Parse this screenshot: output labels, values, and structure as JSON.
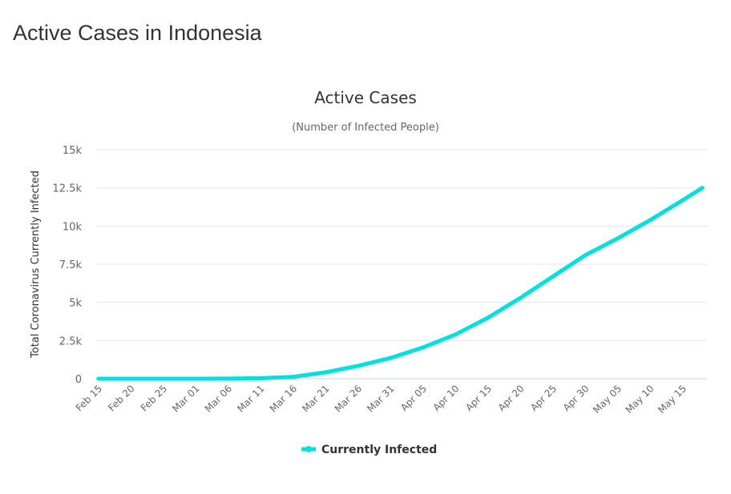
{
  "page_title": "Active Cases in Indonesia",
  "chart_data": {
    "type": "line",
    "title": "Active Cases",
    "subtitle": "(Number of Infected People)",
    "ylabel": "Total Coronavirus Currently Infected",
    "xlabel": "",
    "ylim": [
      0,
      15000
    ],
    "y_ticks": [
      0,
      2500,
      5000,
      7500,
      10000,
      12500,
      15000
    ],
    "y_tick_labels": [
      "0",
      "2.5k",
      "5k",
      "7.5k",
      "10k",
      "12.5k",
      "15k"
    ],
    "x_tick_labels": [
      "Feb 15",
      "Feb 20",
      "Feb 25",
      "Mar 01",
      "Mar 06",
      "Mar 11",
      "Mar 16",
      "Mar 21",
      "Mar 26",
      "Mar 31",
      "Apr 05",
      "Apr 10",
      "Apr 15",
      "Apr 20",
      "Apr 25",
      "Apr 30",
      "May 05",
      "May 10",
      "May 15"
    ],
    "grid": true,
    "legend": "bottom-center",
    "color": "#00e0de",
    "series": [
      {
        "name": "Currently Infected",
        "x": [
          "Feb 15",
          "Feb 20",
          "Feb 25",
          "Mar 01",
          "Mar 06",
          "Mar 11",
          "Mar 16",
          "Mar 21",
          "Mar 26",
          "Mar 31",
          "Apr 05",
          "Apr 10",
          "Apr 15",
          "Apr 20",
          "Apr 25",
          "Apr 30",
          "May 05",
          "May 10",
          "May 15",
          "May 18"
        ],
        "values": [
          0,
          0,
          0,
          2,
          4,
          30,
          120,
          420,
          840,
          1360,
          2050,
          2900,
          4000,
          5300,
          6700,
          8100,
          9200,
          10400,
          11700,
          12500
        ]
      }
    ]
  }
}
